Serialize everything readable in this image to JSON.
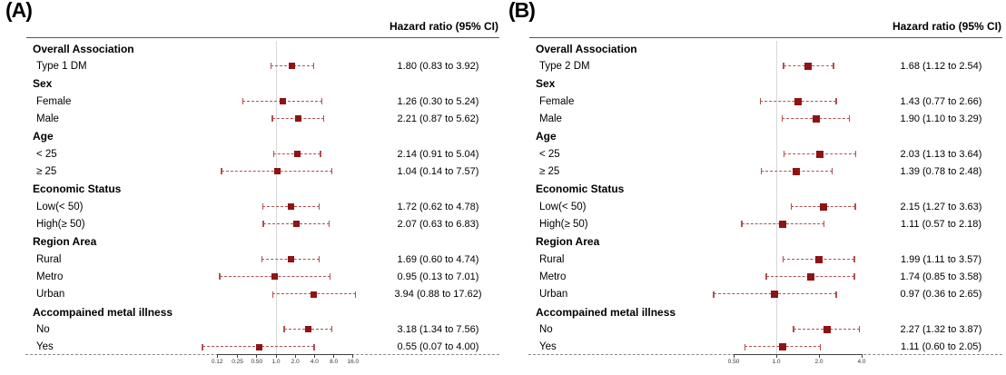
{
  "chart_data": [
    {
      "type": "forest",
      "panel_label": "(A)",
      "column_header": "Hazard ratio (95% CI)",
      "x_scale": "log",
      "ref_line": 1.0,
      "x_ticks": [
        {
          "label": "0.12",
          "value": 0.12
        },
        {
          "label": "0.25",
          "value": 0.25
        },
        {
          "label": "0.50",
          "value": 0.5
        },
        {
          "label": "1.0",
          "value": 1.0
        },
        {
          "label": "2.0",
          "value": 2.0
        },
        {
          "label": "4.0",
          "value": 4.0
        },
        {
          "label": "8.0",
          "value": 8.0
        },
        {
          "label": "16.0",
          "value": 16.0
        }
      ],
      "rows": [
        {
          "kind": "group",
          "label": "Overall Association"
        },
        {
          "kind": "item",
          "label": "Type 1 DM",
          "hr": 1.8,
          "ci_low": 0.83,
          "ci_high": 3.92,
          "display": "1.80 (0.83 to 3.92)"
        },
        {
          "kind": "group",
          "label": "Sex"
        },
        {
          "kind": "item",
          "label": "Female",
          "hr": 1.26,
          "ci_low": 0.3,
          "ci_high": 5.24,
          "display": "1.26 (0.30 to 5.24)"
        },
        {
          "kind": "item",
          "label": "Male",
          "hr": 2.21,
          "ci_low": 0.87,
          "ci_high": 5.62,
          "display": "2.21 (0.87 to 5.62)"
        },
        {
          "kind": "group",
          "label": "Age"
        },
        {
          "kind": "item",
          "label": "< 25",
          "hr": 2.14,
          "ci_low": 0.91,
          "ci_high": 5.04,
          "display": "2.14 (0.91 to 5.04)"
        },
        {
          "kind": "item",
          "label": "≥ 25",
          "hr": 1.04,
          "ci_low": 0.14,
          "ci_high": 7.57,
          "display": "1.04 (0.14 to 7.57)"
        },
        {
          "kind": "group",
          "label": "Economic Status"
        },
        {
          "kind": "item",
          "label": "Low(< 50)",
          "hr": 1.72,
          "ci_low": 0.62,
          "ci_high": 4.78,
          "display": "1.72 (0.62 to 4.78)"
        },
        {
          "kind": "item",
          "label": "High(≥ 50)",
          "hr": 2.07,
          "ci_low": 0.63,
          "ci_high": 6.83,
          "display": "2.07 (0.63 to 6.83)"
        },
        {
          "kind": "group",
          "label": "Region Area"
        },
        {
          "kind": "item",
          "label": "Rural",
          "hr": 1.69,
          "ci_low": 0.6,
          "ci_high": 4.74,
          "display": "1.69 (0.60 to 4.74)"
        },
        {
          "kind": "item",
          "label": "Metro",
          "hr": 0.95,
          "ci_low": 0.13,
          "ci_high": 7.01,
          "display": "0.95 (0.13 to 7.01)"
        },
        {
          "kind": "item",
          "label": "Urban",
          "hr": 3.94,
          "ci_low": 0.88,
          "ci_high": 17.62,
          "display": "3.94 (0.88 to 17.62)"
        },
        {
          "kind": "group",
          "label": "Accompained metal illness"
        },
        {
          "kind": "item",
          "label": "No",
          "hr": 3.18,
          "ci_low": 1.34,
          "ci_high": 7.56,
          "display": "3.18 (1.34 to 7.56)"
        },
        {
          "kind": "item",
          "label": "Yes",
          "hr": 0.55,
          "ci_low": 0.07,
          "ci_high": 4.0,
          "display": "0.55 (0.07 to 4.00)"
        }
      ]
    },
    {
      "type": "forest",
      "panel_label": "(B)",
      "column_header": "Hazard ratio (95% CI)",
      "x_scale": "log",
      "ref_line": 1.0,
      "x_ticks": [
        {
          "label": "0.50",
          "value": 0.5
        },
        {
          "label": "1.0",
          "value": 1.0
        },
        {
          "label": "2.0",
          "value": 2.0
        },
        {
          "label": "4.0",
          "value": 4.0
        }
      ],
      "rows": [
        {
          "kind": "group",
          "label": "Overall Association"
        },
        {
          "kind": "item",
          "label": "Type 2 DM",
          "hr": 1.68,
          "ci_low": 1.12,
          "ci_high": 2.54,
          "display": "1.68 (1.12 to 2.54)"
        },
        {
          "kind": "group",
          "label": "Sex"
        },
        {
          "kind": "item",
          "label": "Female",
          "hr": 1.43,
          "ci_low": 0.77,
          "ci_high": 2.66,
          "display": "1.43 (0.77 to 2.66)"
        },
        {
          "kind": "item",
          "label": "Male",
          "hr": 1.9,
          "ci_low": 1.1,
          "ci_high": 3.29,
          "display": "1.90 (1.10 to 3.29)"
        },
        {
          "kind": "group",
          "label": "Age"
        },
        {
          "kind": "item",
          "label": "< 25",
          "hr": 2.03,
          "ci_low": 1.13,
          "ci_high": 3.64,
          "display": "2.03 (1.13 to 3.64)"
        },
        {
          "kind": "item",
          "label": "≥ 25",
          "hr": 1.39,
          "ci_low": 0.78,
          "ci_high": 2.48,
          "display": "1.39 (0.78 to 2.48)"
        },
        {
          "kind": "group",
          "label": "Economic Status"
        },
        {
          "kind": "item",
          "label": "Low(< 50)",
          "hr": 2.15,
          "ci_low": 1.27,
          "ci_high": 3.63,
          "display": "2.15 (1.27 to 3.63)"
        },
        {
          "kind": "item",
          "label": "High(≥ 50)",
          "hr": 1.11,
          "ci_low": 0.57,
          "ci_high": 2.18,
          "display": "1.11 (0.57 to 2.18)"
        },
        {
          "kind": "group",
          "label": "Region Area"
        },
        {
          "kind": "item",
          "label": "Rural",
          "hr": 1.99,
          "ci_low": 1.11,
          "ci_high": 3.57,
          "display": "1.99 (1.11 to 3.57)"
        },
        {
          "kind": "item",
          "label": "Metro",
          "hr": 1.74,
          "ci_low": 0.85,
          "ci_high": 3.58,
          "display": "1.74 (0.85 to 3.58)"
        },
        {
          "kind": "item",
          "label": "Urban",
          "hr": 0.97,
          "ci_low": 0.36,
          "ci_high": 2.65,
          "display": "0.97 (0.36 to 2.65)"
        },
        {
          "kind": "group",
          "label": "Accompained metal illness"
        },
        {
          "kind": "item",
          "label": "No",
          "hr": 2.27,
          "ci_low": 1.32,
          "ci_high": 3.87,
          "display": "2.27 (1.32 to 3.87)"
        },
        {
          "kind": "item",
          "label": "Yes",
          "hr": 1.11,
          "ci_low": 0.6,
          "ci_high": 2.05,
          "display": "1.11 (0.60 to 2.05)"
        }
      ]
    }
  ]
}
